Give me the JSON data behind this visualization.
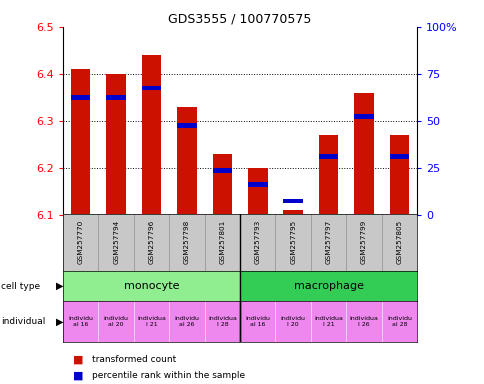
{
  "title": "GDS3555 / 100770575",
  "samples": [
    "GSM257770",
    "GSM257794",
    "GSM257796",
    "GSM257798",
    "GSM257801",
    "GSM257793",
    "GSM257795",
    "GSM257797",
    "GSM257799",
    "GSM257805"
  ],
  "red_values": [
    6.41,
    6.4,
    6.44,
    6.33,
    6.23,
    6.2,
    6.11,
    6.27,
    6.36,
    6.27
  ],
  "blue_values": [
    6.35,
    6.35,
    6.37,
    6.29,
    6.195,
    6.165,
    6.13,
    6.225,
    6.31,
    6.225
  ],
  "y_min": 6.1,
  "y_max": 6.5,
  "y_ticks": [
    6.1,
    6.2,
    6.3,
    6.4,
    6.5
  ],
  "y_right_ticks": [
    0,
    25,
    50,
    75,
    100
  ],
  "y_right_labels": [
    "0",
    "25",
    "50",
    "75",
    "100%"
  ],
  "monocyte_color": "#90EE90",
  "macrophage_color": "#33CC55",
  "individual_color": "#EE88EE",
  "bar_color_red": "#CC1100",
  "bar_color_blue": "#0000CC",
  "bg_gray": "#C8C8C8",
  "indiv_texts": [
    "individu\nal 16",
    "individu\nal 20",
    "individua\nl 21",
    "individu\nal 26",
    "individua\nl 28",
    "individu\nal 16",
    "individu\nl 20",
    "individua\nl 21",
    "individua\nl 26",
    "individu\nal 28"
  ]
}
